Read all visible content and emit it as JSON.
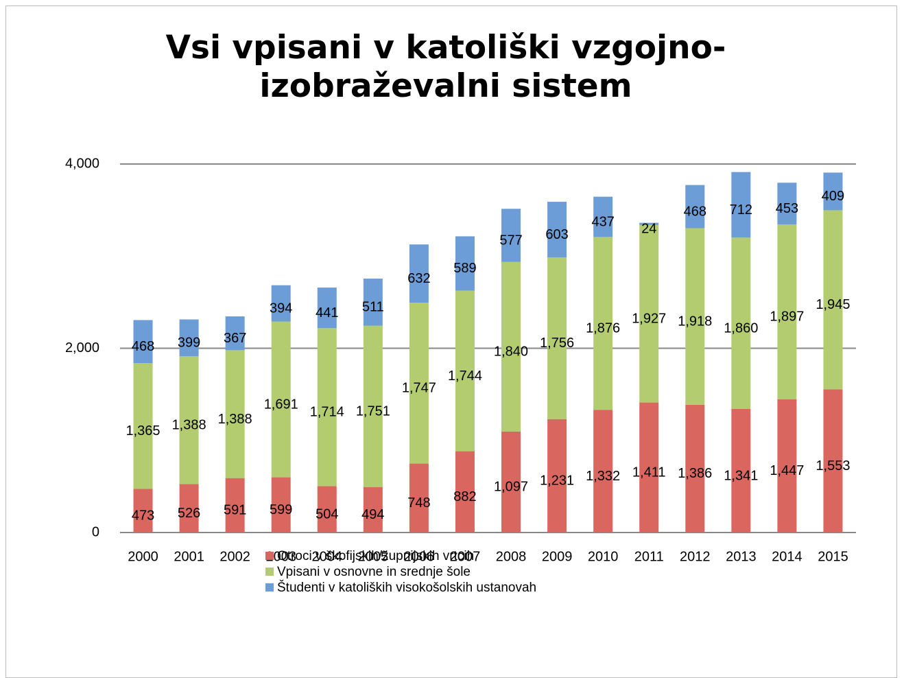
{
  "chart_data": {
    "type": "stacked_bar",
    "title": "Vsi vpisani v katoliški vzgojno-izobraževalni sistem",
    "categories": [
      "2000",
      "2001",
      "2002",
      "2003",
      "2004",
      "2005",
      "2006",
      "2007",
      "2008",
      "2009",
      "2010",
      "2011",
      "2012",
      "2013",
      "2014",
      "2015"
    ],
    "series": [
      {
        "name": "Otroci v škofijskih/župnijskih vrtcih",
        "color": "#d9675f",
        "values": [
          473,
          526,
          591,
          599,
          504,
          494,
          748,
          882,
          1097,
          1231,
          1332,
          1411,
          1386,
          1341,
          1447,
          1553
        ],
        "value_labels": [
          "473",
          "526",
          "591",
          "599",
          "504",
          "494",
          "748",
          "882",
          "1,097",
          "1,231",
          "1,332",
          "1,411",
          "1,386",
          "1,341",
          "1,447",
          "1,553"
        ]
      },
      {
        "name": "Vpisani v osnovne in srednje šole",
        "color": "#b3cc6f",
        "values": [
          1365,
          1388,
          1388,
          1691,
          1714,
          1751,
          1747,
          1744,
          1840,
          1756,
          1876,
          1927,
          1918,
          1860,
          1897,
          1945
        ],
        "value_labels": [
          "1,365",
          "1,388",
          "1,388",
          "1,691",
          "1,714",
          "1,751",
          "1,747",
          "1,744",
          "1,840",
          "1,756",
          "1,876",
          "1,927",
          "1,918",
          "1,860",
          "1,897",
          "1,945"
        ]
      },
      {
        "name": "Študenti v katoliških visokošolskih ustanovah",
        "color": "#6d9dd6",
        "values": [
          468,
          399,
          367,
          394,
          441,
          511,
          632,
          589,
          577,
          603,
          437,
          24,
          468,
          712,
          453,
          409
        ],
        "value_labels": [
          "468",
          "399",
          "367",
          "394",
          "441",
          "511",
          "632",
          "589",
          "577",
          "603",
          "437",
          "24",
          "468",
          "712",
          "453",
          "409"
        ]
      }
    ],
    "ylim": [
      0,
      4000
    ],
    "yticks": [
      0,
      {
        "value": 2000,
        "label": "2,000"
      },
      {
        "value": 4000,
        "label": "4,000"
      }
    ],
    "grid": true,
    "legend": "bottom"
  }
}
